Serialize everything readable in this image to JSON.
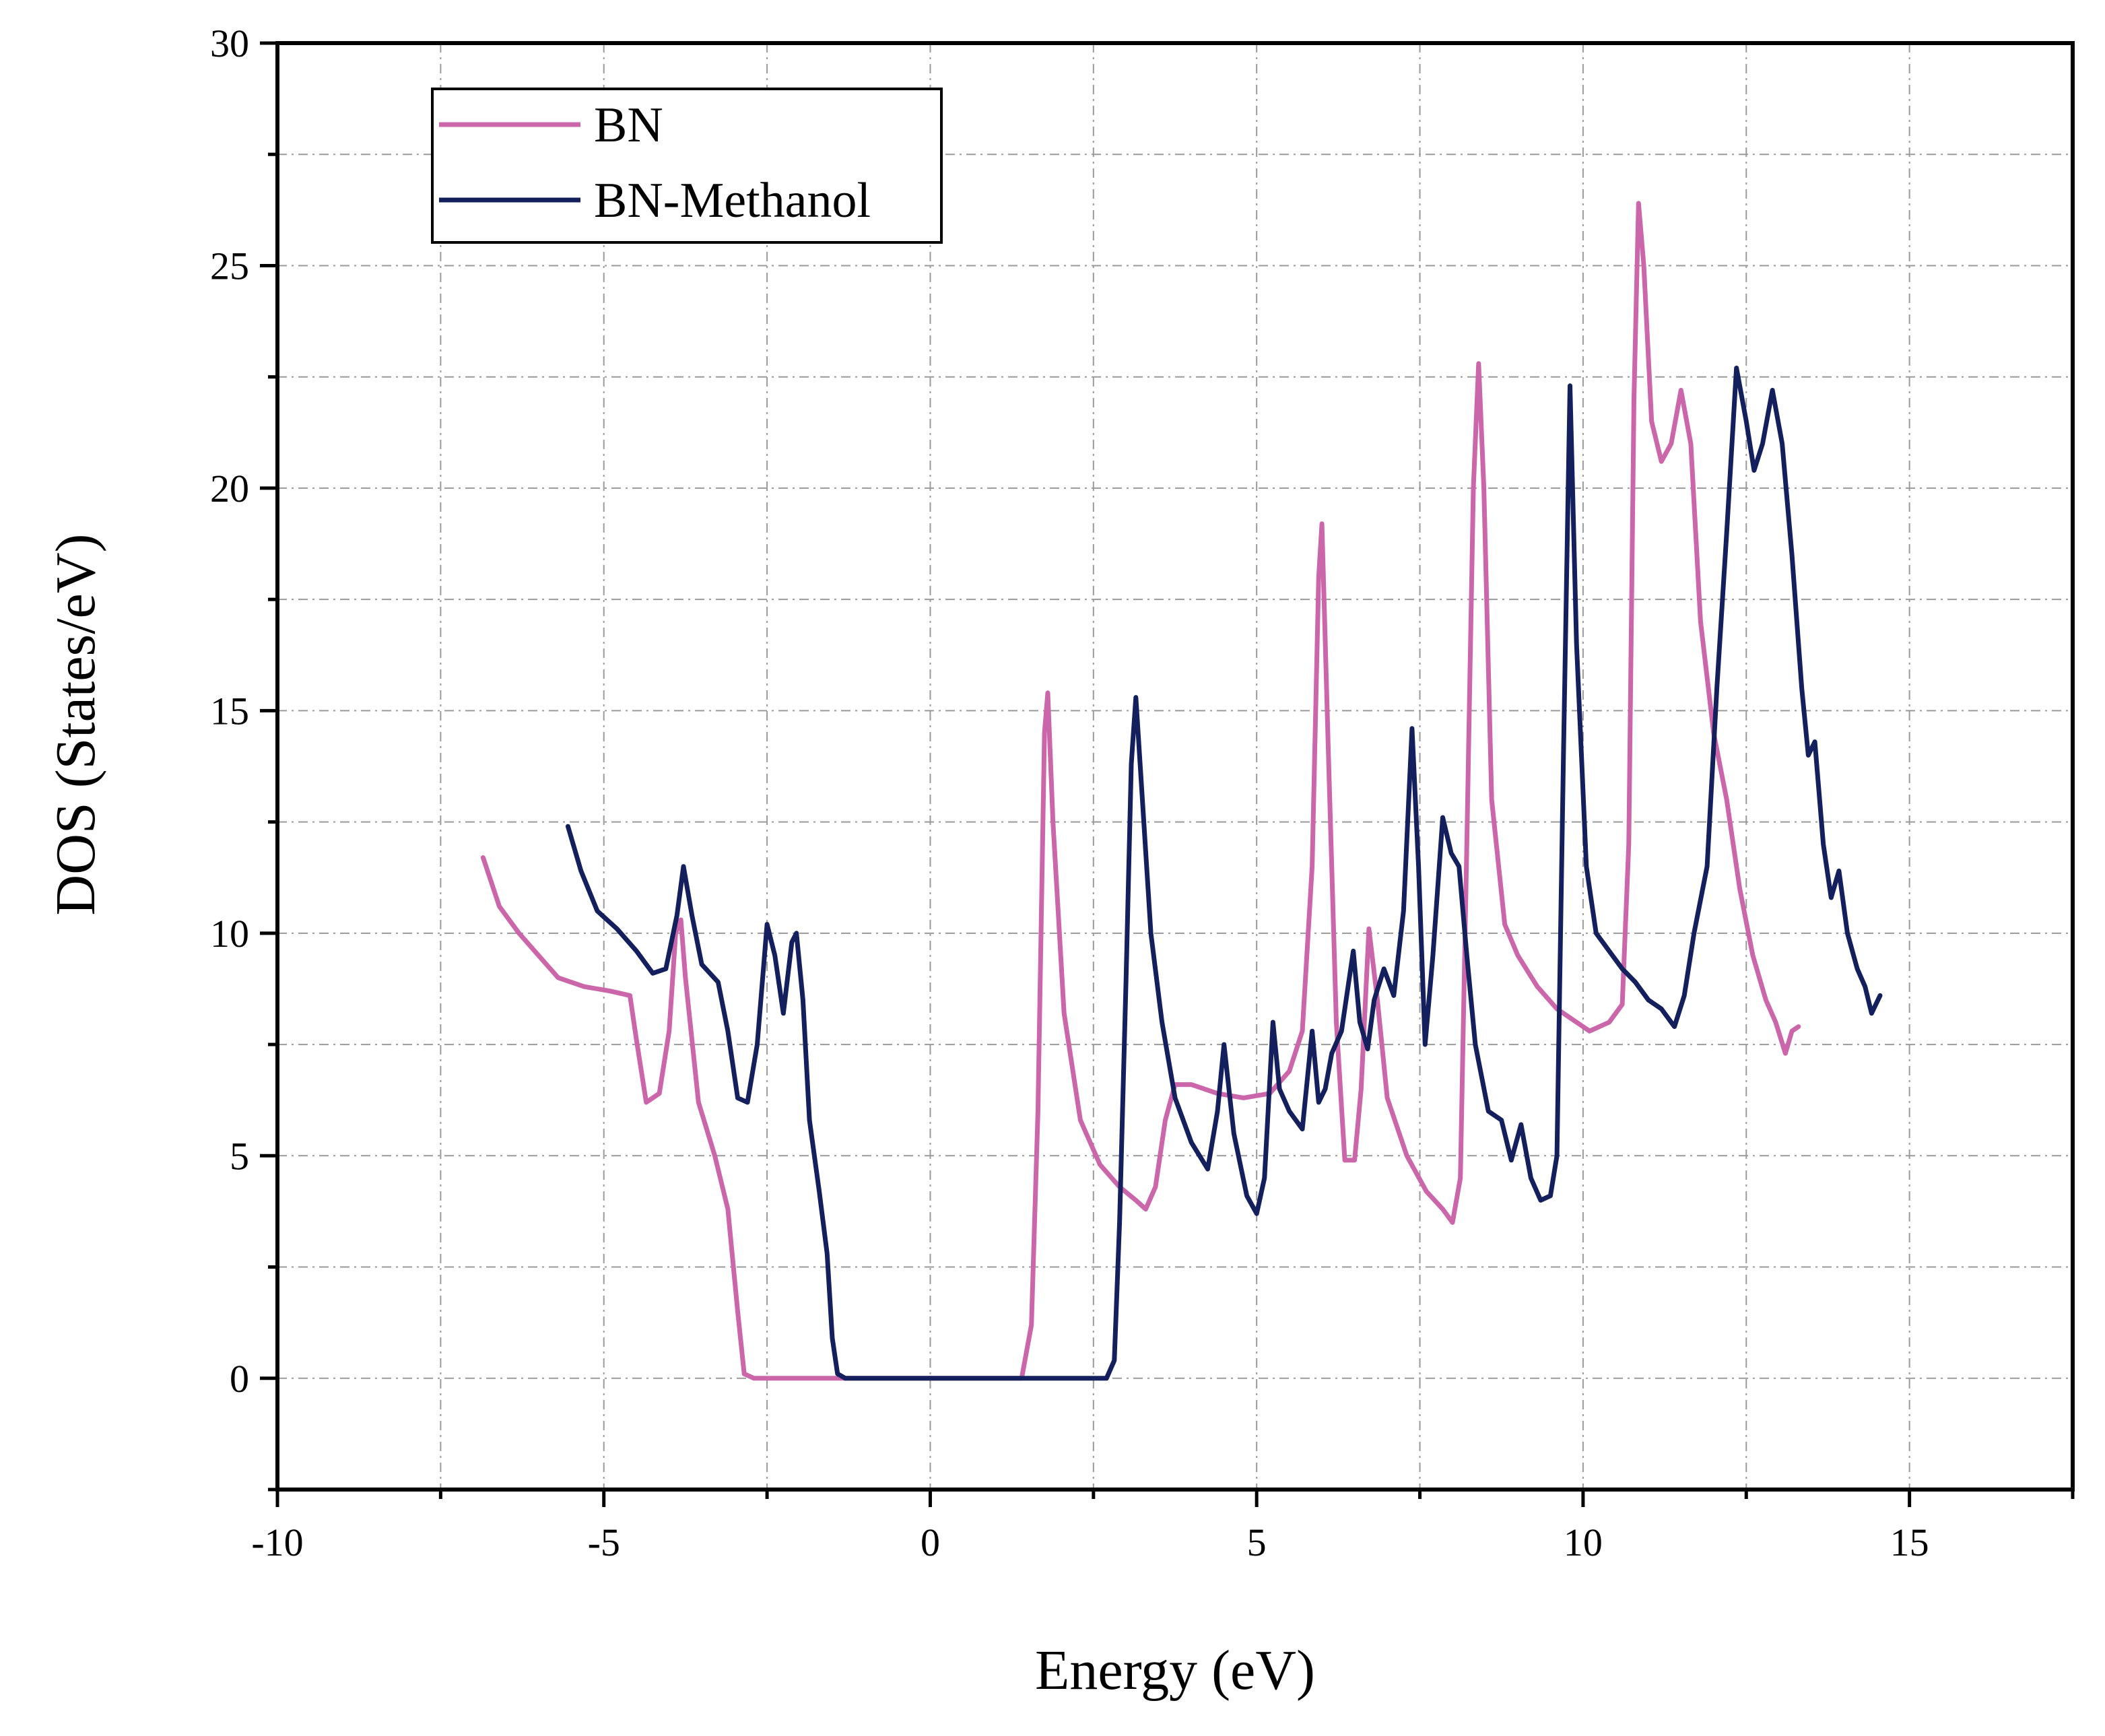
{
  "chart_data": {
    "type": "line",
    "title": "",
    "xlabel": "Energy (eV)",
    "ylabel": "DOS (States/eV)",
    "xlim": [
      -10,
      17.5
    ],
    "ylim": [
      -2.5,
      30
    ],
    "xticks": [
      -10,
      -5,
      0,
      5,
      10,
      15
    ],
    "xtick_labels": [
      "-10",
      "-5",
      "0",
      "5",
      "10",
      "15"
    ],
    "yticks": [
      0,
      5,
      10,
      15,
      20,
      25,
      30
    ],
    "ytick_labels": [
      "0",
      "5",
      "10",
      "15",
      "20",
      "25",
      "30"
    ],
    "grid": true,
    "legend_position": "top-left",
    "series": [
      {
        "name": "BN",
        "color": "#cc66aa",
        "points": [
          [
            -6.85,
            11.7
          ],
          [
            -6.6,
            10.6
          ],
          [
            -6.3,
            10.0
          ],
          [
            -6.0,
            9.5
          ],
          [
            -5.7,
            9.0
          ],
          [
            -5.3,
            8.8
          ],
          [
            -4.9,
            8.7
          ],
          [
            -4.6,
            8.6
          ],
          [
            -4.5,
            7.6
          ],
          [
            -4.35,
            6.2
          ],
          [
            -4.15,
            6.4
          ],
          [
            -4.0,
            7.8
          ],
          [
            -3.9,
            10.0
          ],
          [
            -3.82,
            10.3
          ],
          [
            -3.75,
            9.0
          ],
          [
            -3.55,
            6.2
          ],
          [
            -3.3,
            5.0
          ],
          [
            -3.1,
            3.8
          ],
          [
            -2.95,
            1.5
          ],
          [
            -2.85,
            0.1
          ],
          [
            -2.7,
            0
          ],
          [
            1.4,
            0
          ],
          [
            1.55,
            1.2
          ],
          [
            1.65,
            6.0
          ],
          [
            1.75,
            14.5
          ],
          [
            1.8,
            15.4
          ],
          [
            1.88,
            12.5
          ],
          [
            2.05,
            8.2
          ],
          [
            2.3,
            5.8
          ],
          [
            2.6,
            4.8
          ],
          [
            2.9,
            4.3
          ],
          [
            3.15,
            4.0
          ],
          [
            3.3,
            3.8
          ],
          [
            3.45,
            4.3
          ],
          [
            3.6,
            5.8
          ],
          [
            3.75,
            6.6
          ],
          [
            4.0,
            6.6
          ],
          [
            4.4,
            6.4
          ],
          [
            4.8,
            6.3
          ],
          [
            5.2,
            6.4
          ],
          [
            5.5,
            6.9
          ],
          [
            5.7,
            7.8
          ],
          [
            5.85,
            11.5
          ],
          [
            5.95,
            18.0
          ],
          [
            6.0,
            19.2
          ],
          [
            6.1,
            14.0
          ],
          [
            6.22,
            8.0
          ],
          [
            6.35,
            4.9
          ],
          [
            6.5,
            4.9
          ],
          [
            6.6,
            6.5
          ],
          [
            6.72,
            10.1
          ],
          [
            6.85,
            8.5
          ],
          [
            7.0,
            6.3
          ],
          [
            7.3,
            5.0
          ],
          [
            7.6,
            4.2
          ],
          [
            7.85,
            3.8
          ],
          [
            8.0,
            3.5
          ],
          [
            8.12,
            4.5
          ],
          [
            8.22,
            12.0
          ],
          [
            8.32,
            20.0
          ],
          [
            8.4,
            22.8
          ],
          [
            8.48,
            20.0
          ],
          [
            8.6,
            13.0
          ],
          [
            8.8,
            10.2
          ],
          [
            9.0,
            9.5
          ],
          [
            9.3,
            8.8
          ],
          [
            9.6,
            8.3
          ],
          [
            9.9,
            8.0
          ],
          [
            10.1,
            7.8
          ],
          [
            10.4,
            8.0
          ],
          [
            10.6,
            8.4
          ],
          [
            10.7,
            12.0
          ],
          [
            10.78,
            22.0
          ],
          [
            10.85,
            26.4
          ],
          [
            10.93,
            25.0
          ],
          [
            11.05,
            21.5
          ],
          [
            11.2,
            20.6
          ],
          [
            11.35,
            21.0
          ],
          [
            11.5,
            22.2
          ],
          [
            11.65,
            21.0
          ],
          [
            11.8,
            17.0
          ],
          [
            12.0,
            14.5
          ],
          [
            12.2,
            13.0
          ],
          [
            12.4,
            11.0
          ],
          [
            12.6,
            9.5
          ],
          [
            12.8,
            8.5
          ],
          [
            12.95,
            8.0
          ],
          [
            13.1,
            7.3
          ],
          [
            13.2,
            7.8
          ],
          [
            13.3,
            7.9
          ]
        ]
      },
      {
        "name": "BN-Methanol",
        "color": "#14205e",
        "points": [
          [
            -5.55,
            12.4
          ],
          [
            -5.35,
            11.4
          ],
          [
            -5.1,
            10.5
          ],
          [
            -4.8,
            10.1
          ],
          [
            -4.5,
            9.6
          ],
          [
            -4.25,
            9.1
          ],
          [
            -4.05,
            9.2
          ],
          [
            -3.88,
            10.4
          ],
          [
            -3.78,
            11.5
          ],
          [
            -3.65,
            10.4
          ],
          [
            -3.5,
            9.3
          ],
          [
            -3.25,
            8.9
          ],
          [
            -3.1,
            7.8
          ],
          [
            -2.95,
            6.3
          ],
          [
            -2.8,
            6.2
          ],
          [
            -2.65,
            7.5
          ],
          [
            -2.5,
            10.2
          ],
          [
            -2.38,
            9.5
          ],
          [
            -2.25,
            8.2
          ],
          [
            -2.12,
            9.8
          ],
          [
            -2.05,
            10.0
          ],
          [
            -1.95,
            8.5
          ],
          [
            -1.85,
            5.8
          ],
          [
            -1.7,
            4.2
          ],
          [
            -1.58,
            2.8
          ],
          [
            -1.5,
            0.9
          ],
          [
            -1.42,
            0.1
          ],
          [
            -1.3,
            0
          ],
          [
            2.7,
            0
          ],
          [
            2.82,
            0.4
          ],
          [
            2.9,
            3.5
          ],
          [
            3.0,
            9.0
          ],
          [
            3.08,
            13.8
          ],
          [
            3.15,
            15.3
          ],
          [
            3.25,
            13.0
          ],
          [
            3.38,
            10.0
          ],
          [
            3.55,
            8.0
          ],
          [
            3.75,
            6.3
          ],
          [
            4.0,
            5.3
          ],
          [
            4.25,
            4.7
          ],
          [
            4.4,
            6.0
          ],
          [
            4.5,
            7.5
          ],
          [
            4.65,
            5.5
          ],
          [
            4.85,
            4.1
          ],
          [
            5.0,
            3.7
          ],
          [
            5.12,
            4.5
          ],
          [
            5.25,
            8.0
          ],
          [
            5.35,
            6.5
          ],
          [
            5.5,
            6.0
          ],
          [
            5.7,
            5.6
          ],
          [
            5.85,
            7.8
          ],
          [
            5.95,
            6.2
          ],
          [
            6.05,
            6.5
          ],
          [
            6.15,
            7.3
          ],
          [
            6.3,
            7.8
          ],
          [
            6.48,
            9.6
          ],
          [
            6.58,
            8.0
          ],
          [
            6.7,
            7.4
          ],
          [
            6.8,
            8.5
          ],
          [
            6.95,
            9.2
          ],
          [
            7.1,
            8.6
          ],
          [
            7.25,
            10.5
          ],
          [
            7.38,
            14.6
          ],
          [
            7.48,
            11.5
          ],
          [
            7.58,
            7.5
          ],
          [
            7.7,
            9.5
          ],
          [
            7.85,
            12.6
          ],
          [
            7.98,
            11.8
          ],
          [
            8.1,
            11.5
          ],
          [
            8.22,
            9.5
          ],
          [
            8.35,
            7.5
          ],
          [
            8.55,
            6.0
          ],
          [
            8.75,
            5.8
          ],
          [
            8.9,
            4.9
          ],
          [
            9.05,
            5.7
          ],
          [
            9.2,
            4.5
          ],
          [
            9.35,
            4.0
          ],
          [
            9.5,
            4.1
          ],
          [
            9.6,
            5.0
          ],
          [
            9.7,
            14.0
          ],
          [
            9.8,
            22.3
          ],
          [
            9.9,
            16.5
          ],
          [
            10.05,
            11.5
          ],
          [
            10.2,
            10.0
          ],
          [
            10.4,
            9.6
          ],
          [
            10.6,
            9.2
          ],
          [
            10.8,
            8.9
          ],
          [
            11.0,
            8.5
          ],
          [
            11.2,
            8.3
          ],
          [
            11.4,
            7.9
          ],
          [
            11.55,
            8.6
          ],
          [
            11.7,
            10.0
          ],
          [
            11.9,
            11.5
          ],
          [
            12.05,
            15.5
          ],
          [
            12.2,
            19.0
          ],
          [
            12.35,
            22.7
          ],
          [
            12.5,
            21.5
          ],
          [
            12.62,
            20.4
          ],
          [
            12.75,
            21.0
          ],
          [
            12.9,
            22.2
          ],
          [
            13.05,
            21.0
          ],
          [
            13.2,
            18.5
          ],
          [
            13.35,
            15.5
          ],
          [
            13.45,
            14.0
          ],
          [
            13.55,
            14.3
          ],
          [
            13.68,
            12.0
          ],
          [
            13.8,
            10.8
          ],
          [
            13.92,
            11.4
          ],
          [
            14.05,
            10.0
          ],
          [
            14.2,
            9.2
          ],
          [
            14.32,
            8.8
          ],
          [
            14.42,
            8.2
          ],
          [
            14.55,
            8.6
          ]
        ]
      }
    ]
  }
}
